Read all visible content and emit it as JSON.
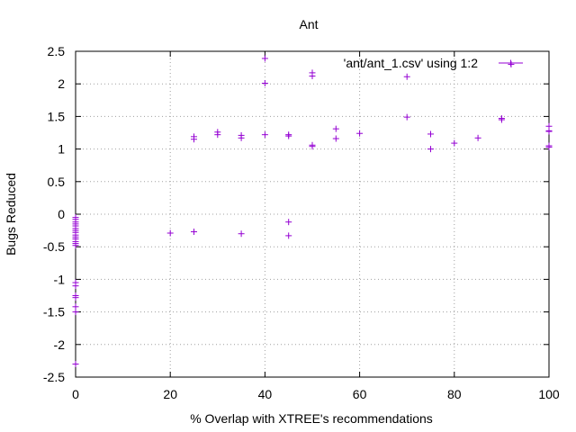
{
  "chart_data": {
    "type": "scatter",
    "title": "Ant",
    "xlabel": "% Overlap with XTREE's recommendations",
    "ylabel": "Bugs Reduced",
    "xlim": [
      0,
      100
    ],
    "ylim": [
      -2.5,
      2.5
    ],
    "x_ticks": [
      0,
      20,
      40,
      60,
      80,
      100
    ],
    "y_ticks": [
      -2.5,
      -2,
      -1.5,
      -1,
      -0.5,
      0,
      0.5,
      1,
      1.5,
      2,
      2.5
    ],
    "grid": true,
    "legend_position": "top-right",
    "marker": "+",
    "color": "#9400d3",
    "series": [
      {
        "name": "'ant/ant_1.csv' using 1:2",
        "points": [
          [
            0,
            -0.05
          ],
          [
            0,
            -0.08
          ],
          [
            0,
            -0.12
          ],
          [
            0,
            -0.15
          ],
          [
            0,
            -0.18
          ],
          [
            0,
            -0.22
          ],
          [
            0,
            -0.25
          ],
          [
            0,
            -0.28
          ],
          [
            0,
            -0.32
          ],
          [
            0,
            -0.35
          ],
          [
            0,
            -0.38
          ],
          [
            0,
            -0.42
          ],
          [
            0,
            -0.45
          ],
          [
            0,
            -0.48
          ],
          [
            0,
            -1.05
          ],
          [
            0,
            -1.1
          ],
          [
            0,
            -1.25
          ],
          [
            0,
            -1.28
          ],
          [
            0,
            -1.42
          ],
          [
            0,
            -1.5
          ],
          [
            0,
            -2.3
          ],
          [
            20,
            -0.29
          ],
          [
            25,
            -0.27
          ],
          [
            25,
            1.15
          ],
          [
            25,
            1.19
          ],
          [
            30,
            1.22
          ],
          [
            30,
            1.26
          ],
          [
            35,
            1.17
          ],
          [
            35,
            1.21
          ],
          [
            35,
            -0.3
          ],
          [
            40,
            2.39
          ],
          [
            40,
            2.01
          ],
          [
            40,
            1.22
          ],
          [
            45,
            1.2
          ],
          [
            45,
            1.22
          ],
          [
            45,
            -0.12
          ],
          [
            45,
            -0.33
          ],
          [
            50,
            2.17
          ],
          [
            50,
            2.12
          ],
          [
            50,
            1.06
          ],
          [
            50,
            1.04
          ],
          [
            55,
            1.31
          ],
          [
            55,
            1.16
          ],
          [
            60,
            1.24
          ],
          [
            70,
            2.11
          ],
          [
            70,
            1.49
          ],
          [
            75,
            1.23
          ],
          [
            75,
            1.0
          ],
          [
            80,
            1.09
          ],
          [
            85,
            1.17
          ],
          [
            90,
            1.47
          ],
          [
            90,
            1.45
          ],
          [
            92,
            2.3
          ],
          [
            100,
            1.35
          ],
          [
            100,
            1.28
          ],
          [
            100,
            1.27
          ],
          [
            100,
            1.05
          ],
          [
            100,
            1.03
          ]
        ]
      }
    ]
  }
}
